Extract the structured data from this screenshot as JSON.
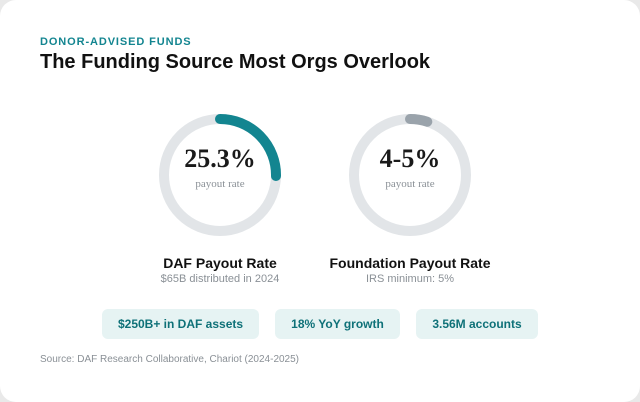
{
  "header": {
    "eyebrow": "DONOR-ADVISED FUNDS",
    "title": "The Funding Source Most Orgs Overlook"
  },
  "chart_data": [
    {
      "type": "gauge",
      "title": "DAF Payout Rate",
      "display_value": "25.3%",
      "value_percent": 25.3,
      "unit_label": "payout rate",
      "note": "$65B distributed in 2024",
      "track_color": "#e2e5e8",
      "arc_color": "#138590"
    },
    {
      "type": "gauge",
      "title": "Foundation Payout Rate",
      "display_value": "4-5%",
      "value_percent": 5,
      "range_percent": [
        4,
        5
      ],
      "unit_label": "payout rate",
      "note": "IRS minimum: 5%",
      "track_color": "#e2e5e8",
      "arc_color": "#9aa3ab"
    }
  ],
  "stats": [
    "$250B+ in DAF assets",
    "18% YoY growth",
    "3.56M accounts"
  ],
  "footer": {
    "source": "Source: DAF Research Collaborative, Chariot (2024-2025)"
  }
}
